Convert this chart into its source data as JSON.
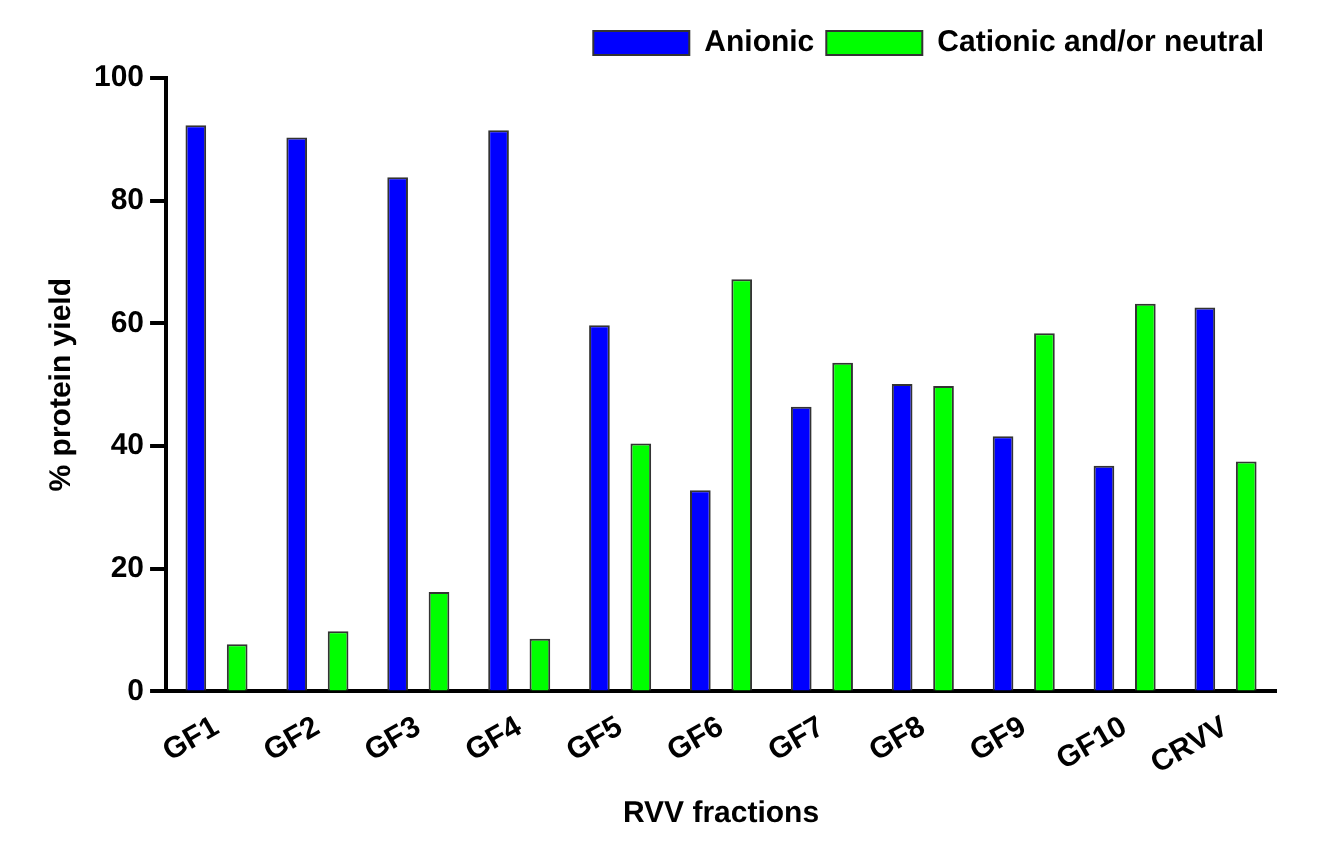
{
  "chart_data": {
    "type": "bar",
    "xlabel": "RVV fractions",
    "ylabel": "% protein yield",
    "categories": [
      "GF1",
      "GF2",
      "GF3",
      "GF4",
      "GF5",
      "GF6",
      "GF7",
      "GF8",
      "GF9",
      "GF10",
      "CRVV"
    ],
    "series": [
      {
        "name": "Anionic",
        "color": "#0000ff",
        "values": [
          92.3,
          90.3,
          83.8,
          91.5,
          59.7,
          32.8,
          46.4,
          50.1,
          41.6,
          36.8,
          62.6
        ]
      },
      {
        "name": "Cationic and/or neutral",
        "color": "#00ff00",
        "values": [
          7.7,
          9.8,
          16.2,
          8.6,
          40.4,
          67.2,
          53.6,
          49.8,
          58.4,
          63.2,
          37.5
        ]
      }
    ],
    "ylim": [
      0,
      100
    ],
    "yticks": [
      0,
      20,
      40,
      60,
      80,
      100
    ],
    "grid": false,
    "legend": "top right"
  }
}
